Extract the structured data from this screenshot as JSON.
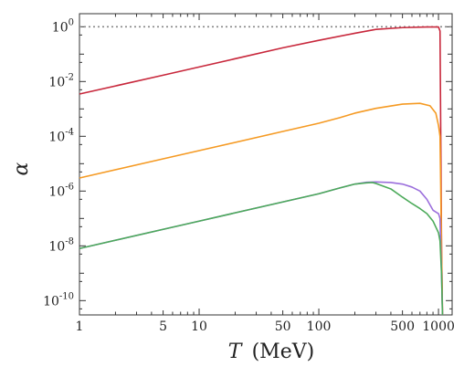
{
  "chart_data": {
    "type": "line",
    "title": "",
    "xlabel_symbol": "T",
    "xlabel_unit": "(MeV)",
    "ylabel": "α",
    "xscale": "log",
    "yscale": "log",
    "xlim": [
      1,
      1300
    ],
    "ylim": [
      3e-11,
      3
    ],
    "grid": false,
    "legend": "none",
    "x_ticks": [
      {
        "value": 1,
        "label": "1"
      },
      {
        "value": 5,
        "label": "5"
      },
      {
        "value": 10,
        "label": "10"
      },
      {
        "value": 50,
        "label": "50"
      },
      {
        "value": 100,
        "label": "100"
      },
      {
        "value": 500,
        "label": "500"
      },
      {
        "value": 1000,
        "label": "1000"
      }
    ],
    "y_ticks": [
      {
        "value": 1,
        "base": "10",
        "exp": "0"
      },
      {
        "value": 0.01,
        "base": "10",
        "exp": "-2"
      },
      {
        "value": 0.0001,
        "base": "10",
        "exp": "-4"
      },
      {
        "value": 1e-06,
        "base": "10",
        "exp": "-6"
      },
      {
        "value": 1e-08,
        "base": "10",
        "exp": "-8"
      },
      {
        "value": 1e-10,
        "base": "10",
        "exp": "-10"
      }
    ],
    "reference_line": {
      "y": 1,
      "color": "#888888",
      "style": "dotted"
    },
    "series": [
      {
        "color": "#c8283c",
        "points": [
          [
            1,
            0.0035
          ],
          [
            5,
            0.017
          ],
          [
            10,
            0.034
          ],
          [
            50,
            0.17
          ],
          [
            100,
            0.32
          ],
          [
            200,
            0.58
          ],
          [
            300,
            0.8
          ],
          [
            500,
            0.93
          ],
          [
            800,
            0.98
          ],
          [
            1000,
            0.98
          ],
          [
            1030,
            0.7
          ],
          [
            1060,
            1e-08
          ],
          [
            1080,
            3e-11
          ]
        ]
      },
      {
        "color": "#f59a23",
        "points": [
          [
            1,
            3e-06
          ],
          [
            5,
            1.5e-05
          ],
          [
            10,
            3e-05
          ],
          [
            50,
            0.00015
          ],
          [
            100,
            0.0003
          ],
          [
            150,
            0.00048
          ],
          [
            200,
            0.0007
          ],
          [
            300,
            0.00105
          ],
          [
            500,
            0.0015
          ],
          [
            700,
            0.0016
          ],
          [
            850,
            0.0013
          ],
          [
            950,
            0.0007
          ],
          [
            1000,
            0.00025
          ],
          [
            1030,
            0.0001
          ],
          [
            1060,
            1e-08
          ],
          [
            1080,
            3e-11
          ]
        ]
      },
      {
        "color": "#9b6fdc",
        "points": [
          [
            1,
            8e-09
          ],
          [
            5,
            4e-08
          ],
          [
            10,
            8e-08
          ],
          [
            50,
            4e-07
          ],
          [
            100,
            8e-07
          ],
          [
            150,
            1.3e-06
          ],
          [
            200,
            1.8e-06
          ],
          [
            250,
            2.1e-06
          ],
          [
            300,
            2.15e-06
          ],
          [
            400,
            2.05e-06
          ],
          [
            500,
            1.8e-06
          ],
          [
            600,
            1.4e-06
          ],
          [
            700,
            1e-06
          ],
          [
            800,
            5e-07
          ],
          [
            900,
            2e-07
          ],
          [
            1000,
            1.5e-07
          ],
          [
            1030,
            1e-07
          ],
          [
            1060,
            1e-09
          ],
          [
            1080,
            3e-11
          ]
        ]
      },
      {
        "color": "#4caa5a",
        "points": [
          [
            1,
            8e-09
          ],
          [
            5,
            4e-08
          ],
          [
            10,
            8e-08
          ],
          [
            50,
            4e-07
          ],
          [
            100,
            8e-07
          ],
          [
            150,
            1.3e-06
          ],
          [
            200,
            1.8e-06
          ],
          [
            250,
            2e-06
          ],
          [
            280,
            2.05e-06
          ],
          [
            300,
            1.9e-06
          ],
          [
            400,
            1.2e-06
          ],
          [
            500,
            6e-07
          ],
          [
            600,
            3.5e-07
          ],
          [
            700,
            2.3e-07
          ],
          [
            800,
            1.5e-07
          ],
          [
            900,
            8e-08
          ],
          [
            1000,
            3e-08
          ],
          [
            1030,
            1.5e-08
          ],
          [
            1060,
            1e-09
          ],
          [
            1080,
            3e-11
          ]
        ]
      }
    ]
  }
}
